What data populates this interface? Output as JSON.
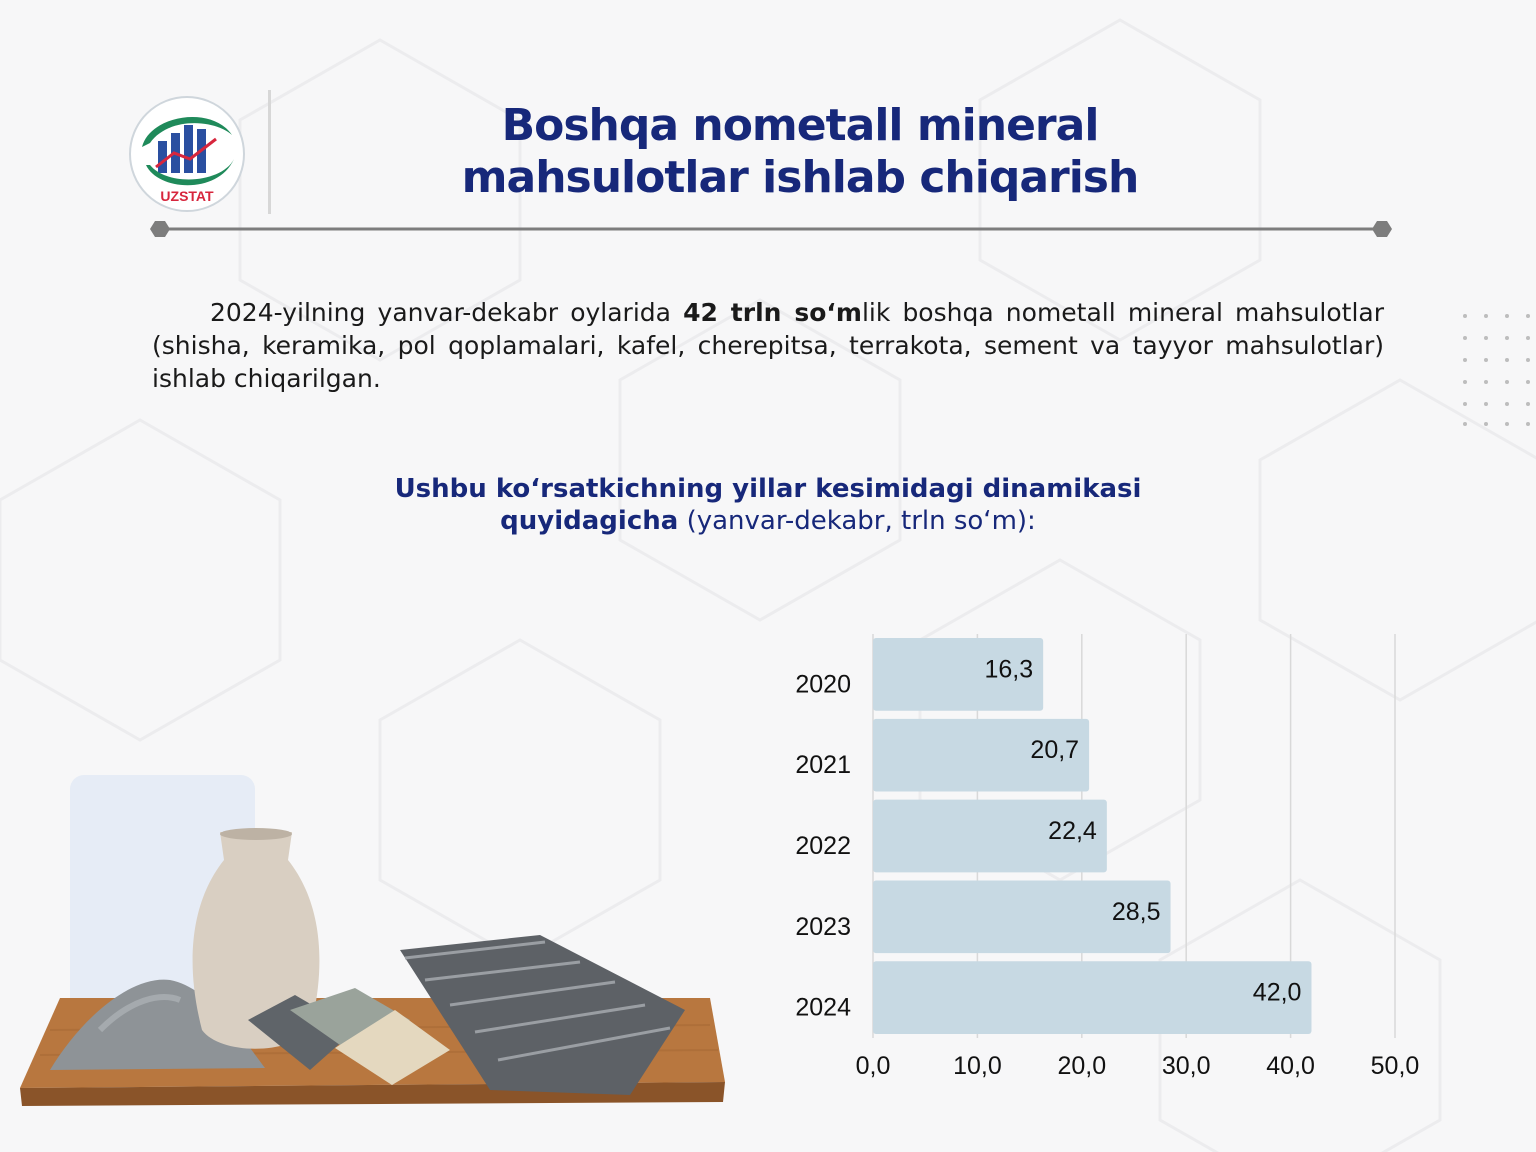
{
  "header": {
    "logo_text": "UZSTAT",
    "title_line1": "Boshqa nometall mineral",
    "title_line2": "mahsulotlar ishlab chiqarish"
  },
  "intro": {
    "before_bold": "2024-yilning yanvar-dekabr oylarida ",
    "bold": "42 trln so‘m",
    "after_bold": "lik boshqa nometall mineral mahsulotlar (shisha, keramika, pol qoplamalari, kafel, cherepitsa, terrakota, sement va tayyor mahsulotlar) ishlab chiqarilgan."
  },
  "subtitle": {
    "bold_line1": "Ushbu ko‘rsatkichning yillar kesimidagi dinamikasi",
    "bold_line2": "quyidagicha",
    "normal": " (yanvar-dekabr, trln so‘m):"
  },
  "colors": {
    "title": "#17287a",
    "bar": "#c7d9e3",
    "grid": "#d9d9d9"
  },
  "chart_data": {
    "type": "bar",
    "orientation": "horizontal",
    "categories": [
      "2020",
      "2021",
      "2022",
      "2023",
      "2024"
    ],
    "values": [
      16.3,
      20.7,
      22.4,
      28.5,
      42.0
    ],
    "value_labels": [
      "16,3",
      "20,7",
      "22,4",
      "28,5",
      "42,0"
    ],
    "xlim": [
      0,
      50
    ],
    "xticks": [
      0,
      10,
      20,
      30,
      40,
      50
    ],
    "xtick_labels": [
      "0,0",
      "10,0",
      "20,0",
      "30,0",
      "40,0",
      "50,0"
    ],
    "grid": true,
    "title": "",
    "xlabel": "",
    "ylabel": ""
  }
}
